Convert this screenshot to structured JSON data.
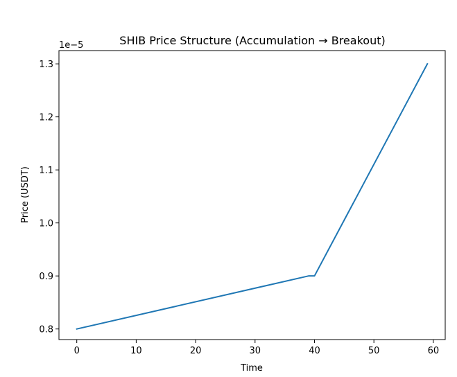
{
  "chart_data": {
    "type": "line",
    "title": "SHIB Price Structure (Accumulation → Breakout)",
    "xlabel": "Time",
    "ylabel": "Price (USDT)",
    "y_offset_label": "1e−5",
    "xlim": [
      -3,
      62
    ],
    "ylim": [
      0.78,
      1.325
    ],
    "x_ticks": [
      0,
      10,
      20,
      30,
      40,
      50,
      60
    ],
    "x_tick_labels": [
      "0",
      "10",
      "20",
      "30",
      "40",
      "50",
      "60"
    ],
    "y_ticks": [
      0.8,
      0.9,
      1.0,
      1.1,
      1.2,
      1.3
    ],
    "y_tick_labels": [
      "0.8",
      "0.9",
      "1.0",
      "1.1",
      "1.2",
      "1.3"
    ],
    "grid": false,
    "series": [
      {
        "color": "#1f77b4",
        "x": [
          0,
          39,
          40,
          59
        ],
        "y": [
          0.8,
          0.9,
          0.9,
          1.3
        ]
      }
    ]
  }
}
